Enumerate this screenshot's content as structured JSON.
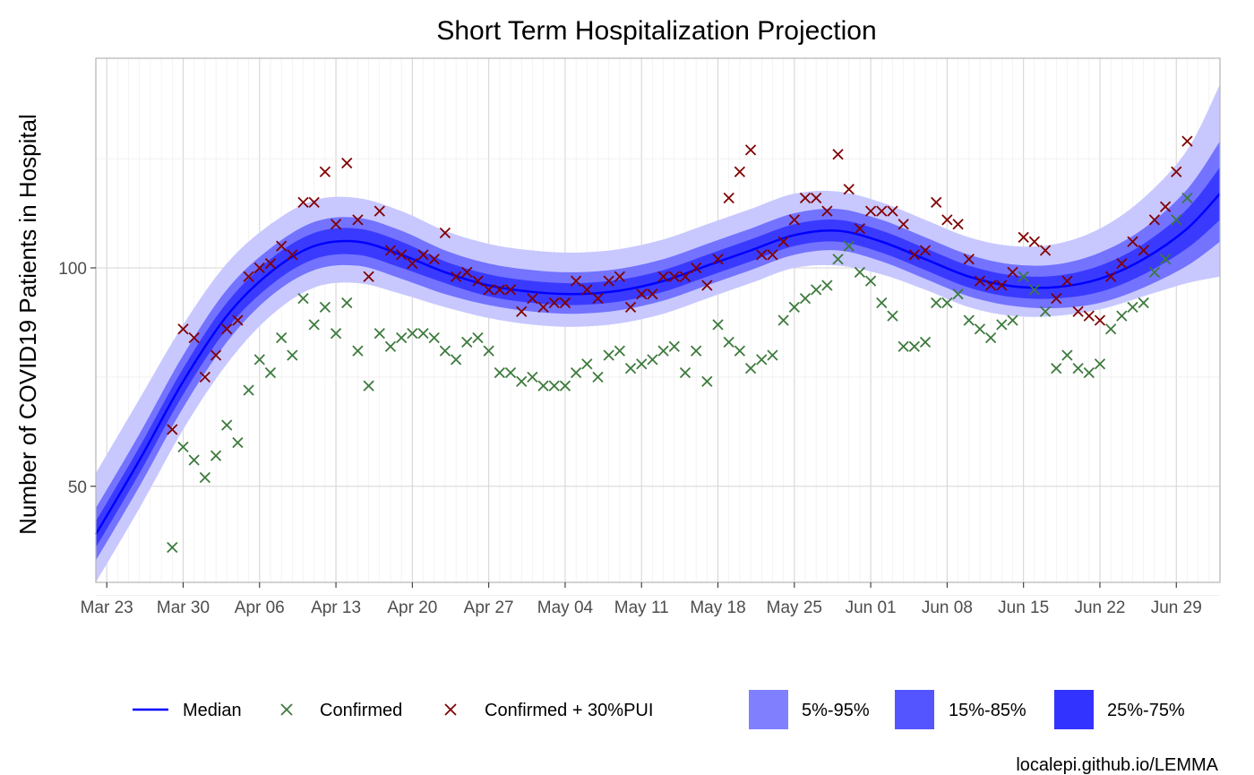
{
  "chart_data": {
    "type": "line",
    "title": "Short Term Hospitalization Projection",
    "xlabel": "",
    "ylabel": "Number of COVID19 Patients in Hospital",
    "caption": "localepi.github.io/LEMMA",
    "x_ticks": [
      "Mar 23",
      "Mar 30",
      "Apr 06",
      "Apr 13",
      "Apr 20",
      "Apr 27",
      "May 04",
      "May 11",
      "May 18",
      "May 25",
      "Jun 01",
      "Jun 08",
      "Jun 15",
      "Jun 22",
      "Jun 29"
    ],
    "y_ticks": [
      50,
      100
    ],
    "xlim": [
      "2020-03-22",
      "2020-07-03"
    ],
    "ylim": [
      28,
      148
    ],
    "grid": true,
    "legend_position": "bottom",
    "colors": {
      "median": "#0000ff",
      "confirmed": "#3d7a3d",
      "confirmed_pui": "#800000",
      "band_5_95": "#c8c8ff",
      "band_15_85": "#7373ff",
      "band_25_75": "#3a3aff",
      "legend_5_95": "#8080ff",
      "legend_15_85": "#5555ff",
      "legend_25_75": "#3333ff"
    },
    "legend": {
      "median": "Median",
      "confirmed": "Confirmed",
      "confirmed_pui": "Confirmed + 30%PUI",
      "band_5_95": "5%-95%",
      "band_15_85": "15%-85%",
      "band_25_75": "25%-75%"
    },
    "projection": {
      "x": [
        "2020-03-22",
        "2020-03-26",
        "2020-03-30",
        "2020-04-03",
        "2020-04-07",
        "2020-04-11",
        "2020-04-15",
        "2020-04-19",
        "2020-04-23",
        "2020-04-27",
        "2020-05-01",
        "2020-05-05",
        "2020-05-09",
        "2020-05-13",
        "2020-05-17",
        "2020-05-21",
        "2020-05-25",
        "2020-05-29",
        "2020-06-02",
        "2020-06-06",
        "2020-06-10",
        "2020-06-14",
        "2020-06-18",
        "2020-06-22",
        "2020-06-26",
        "2020-06-30",
        "2020-07-03"
      ],
      "median": [
        39,
        56,
        74,
        89,
        99,
        105,
        106,
        103,
        99,
        96,
        94.5,
        94,
        94.8,
        97,
        100.5,
        104,
        107.5,
        108.5,
        106,
        102,
        98,
        95.8,
        95.6,
        97.5,
        102,
        109,
        117
      ],
      "lo_25": [
        36,
        53,
        71,
        86,
        96,
        102,
        103,
        100,
        96.5,
        93.5,
        92,
        91.5,
        92.3,
        94.5,
        98,
        101.5,
        105,
        106,
        103.5,
        99.5,
        95.5,
        93.3,
        93,
        94.5,
        98.5,
        104.5,
        111
      ],
      "hi_25": [
        42,
        59,
        77,
        92,
        102,
        108,
        109,
        106,
        101.5,
        98.5,
        97,
        96.5,
        97.3,
        99.5,
        103,
        106.5,
        110,
        111,
        108.5,
        104.5,
        100.5,
        98.3,
        98.2,
        100.5,
        105.5,
        113.5,
        123
      ],
      "lo_15": [
        33,
        50,
        68,
        83,
        93.5,
        99.5,
        100.5,
        97.5,
        94,
        91.5,
        90,
        89.5,
        90.3,
        92.5,
        96,
        99.5,
        103,
        104,
        101.5,
        97.5,
        93.5,
        91.3,
        90.8,
        92,
        95.5,
        100.5,
        106
      ],
      "hi_15": [
        45,
        62,
        80,
        95,
        104.5,
        110.5,
        111.5,
        108.5,
        104,
        101,
        99.5,
        99,
        99.8,
        102,
        105.5,
        109,
        112.5,
        113.5,
        111,
        107,
        103,
        100.8,
        100.8,
        103.5,
        109,
        118,
        129
      ],
      "lo_5": [
        28,
        45,
        63,
        78,
        89,
        95.5,
        96.5,
        94,
        91,
        88.5,
        87,
        86.5,
        87.3,
        89.5,
        93,
        96.5,
        100,
        100.5,
        98.5,
        95,
        91,
        89,
        89,
        90.5,
        93.5,
        96.5,
        98
      ],
      "hi_5": [
        53,
        70,
        87,
        101,
        110,
        115.5,
        116,
        113,
        108.5,
        105.5,
        104,
        103.5,
        104.3,
        106.5,
        110,
        113.5,
        117,
        117.5,
        115,
        111,
        107,
        105,
        105.5,
        109,
        116,
        127,
        142
      ]
    },
    "confirmed": {
      "x": [
        "2020-03-29",
        "2020-03-30",
        "2020-03-31",
        "2020-04-01",
        "2020-04-02",
        "2020-04-03",
        "2020-04-04",
        "2020-04-05",
        "2020-04-06",
        "2020-04-07",
        "2020-04-08",
        "2020-04-09",
        "2020-04-10",
        "2020-04-11",
        "2020-04-12",
        "2020-04-13",
        "2020-04-14",
        "2020-04-15",
        "2020-04-16",
        "2020-04-17",
        "2020-04-18",
        "2020-04-19",
        "2020-04-20",
        "2020-04-21",
        "2020-04-22",
        "2020-04-23",
        "2020-04-24",
        "2020-04-25",
        "2020-04-26",
        "2020-04-27",
        "2020-04-28",
        "2020-04-29",
        "2020-04-30",
        "2020-05-01",
        "2020-05-02",
        "2020-05-03",
        "2020-05-04",
        "2020-05-05",
        "2020-05-06",
        "2020-05-07",
        "2020-05-08",
        "2020-05-09",
        "2020-05-10",
        "2020-05-11",
        "2020-05-12",
        "2020-05-13",
        "2020-05-14",
        "2020-05-15",
        "2020-05-16",
        "2020-05-17",
        "2020-05-18",
        "2020-05-19",
        "2020-05-20",
        "2020-05-21",
        "2020-05-22",
        "2020-05-23",
        "2020-05-24",
        "2020-05-25",
        "2020-05-26",
        "2020-05-27",
        "2020-05-28",
        "2020-05-29",
        "2020-05-30",
        "2020-05-31",
        "2020-06-01",
        "2020-06-02",
        "2020-06-03",
        "2020-06-04",
        "2020-06-05",
        "2020-06-06",
        "2020-06-07",
        "2020-06-08",
        "2020-06-09",
        "2020-06-10",
        "2020-06-11",
        "2020-06-12",
        "2020-06-13",
        "2020-06-14",
        "2020-06-15",
        "2020-06-16",
        "2020-06-17",
        "2020-06-18",
        "2020-06-19",
        "2020-06-20",
        "2020-06-21",
        "2020-06-22",
        "2020-06-23",
        "2020-06-24",
        "2020-06-25",
        "2020-06-26",
        "2020-06-27",
        "2020-06-28",
        "2020-06-29",
        "2020-06-30"
      ],
      "y": [
        36,
        59,
        56,
        52,
        57,
        64,
        60,
        72,
        79,
        76,
        84,
        80,
        93,
        87,
        91,
        85,
        92,
        81,
        73,
        85,
        82,
        84,
        85,
        85,
        84,
        81,
        79,
        83,
        84,
        81,
        76,
        76,
        74,
        75,
        73,
        73,
        73,
        76,
        78,
        75,
        80,
        81,
        77,
        78,
        79,
        81,
        82,
        76,
        81,
        74,
        87,
        83,
        81,
        77,
        79,
        80,
        88,
        91,
        93,
        95,
        96,
        102,
        105,
        99,
        97,
        92,
        89,
        82,
        82,
        83,
        92,
        92,
        94,
        88,
        86,
        84,
        87,
        88,
        98,
        95,
        90,
        77,
        80,
        77,
        76,
        78,
        86,
        89,
        91,
        92,
        99,
        102,
        111,
        116
      ]
    },
    "confirmed_pui": {
      "x": [
        "2020-03-29",
        "2020-03-30",
        "2020-03-31",
        "2020-04-01",
        "2020-04-02",
        "2020-04-03",
        "2020-04-04",
        "2020-04-05",
        "2020-04-06",
        "2020-04-07",
        "2020-04-08",
        "2020-04-09",
        "2020-04-10",
        "2020-04-11",
        "2020-04-12",
        "2020-04-13",
        "2020-04-14",
        "2020-04-15",
        "2020-04-16",
        "2020-04-17",
        "2020-04-18",
        "2020-04-19",
        "2020-04-20",
        "2020-04-21",
        "2020-04-22",
        "2020-04-23",
        "2020-04-24",
        "2020-04-25",
        "2020-04-26",
        "2020-04-27",
        "2020-04-28",
        "2020-04-29",
        "2020-04-30",
        "2020-05-01",
        "2020-05-02",
        "2020-05-03",
        "2020-05-04",
        "2020-05-05",
        "2020-05-06",
        "2020-05-07",
        "2020-05-08",
        "2020-05-09",
        "2020-05-10",
        "2020-05-11",
        "2020-05-12",
        "2020-05-13",
        "2020-05-14",
        "2020-05-15",
        "2020-05-16",
        "2020-05-17",
        "2020-05-18",
        "2020-05-19",
        "2020-05-20",
        "2020-05-21",
        "2020-05-22",
        "2020-05-23",
        "2020-05-24",
        "2020-05-25",
        "2020-05-26",
        "2020-05-27",
        "2020-05-28",
        "2020-05-29",
        "2020-05-30",
        "2020-05-31",
        "2020-06-01",
        "2020-06-02",
        "2020-06-03",
        "2020-06-04",
        "2020-06-05",
        "2020-06-06",
        "2020-06-07",
        "2020-06-08",
        "2020-06-09",
        "2020-06-10",
        "2020-06-11",
        "2020-06-12",
        "2020-06-13",
        "2020-06-14",
        "2020-06-15",
        "2020-06-16",
        "2020-06-17",
        "2020-06-18",
        "2020-06-19",
        "2020-06-20",
        "2020-06-21",
        "2020-06-22",
        "2020-06-23",
        "2020-06-24",
        "2020-06-25",
        "2020-06-26",
        "2020-06-27",
        "2020-06-28",
        "2020-06-29",
        "2020-06-30"
      ],
      "y": [
        63,
        86,
        84,
        75,
        80,
        86,
        88,
        98,
        100,
        101,
        105,
        103,
        115,
        115,
        122,
        110,
        124,
        111,
        98,
        113,
        104,
        103,
        101,
        103,
        102,
        108,
        98,
        99,
        97,
        95,
        95,
        95,
        90,
        93,
        91,
        92,
        92,
        97,
        95,
        93,
        97,
        98,
        91,
        94,
        94,
        98,
        98,
        98,
        100,
        96,
        102,
        116,
        122,
        127,
        103,
        103,
        106,
        111,
        116,
        116,
        113,
        126,
        118,
        109,
        113,
        113,
        113,
        110,
        103,
        104,
        115,
        111,
        110,
        102,
        97,
        96,
        96,
        99,
        107,
        106,
        104,
        93,
        97,
        90,
        89,
        88,
        98,
        101,
        106,
        104,
        111,
        114,
        122,
        129
      ]
    }
  }
}
